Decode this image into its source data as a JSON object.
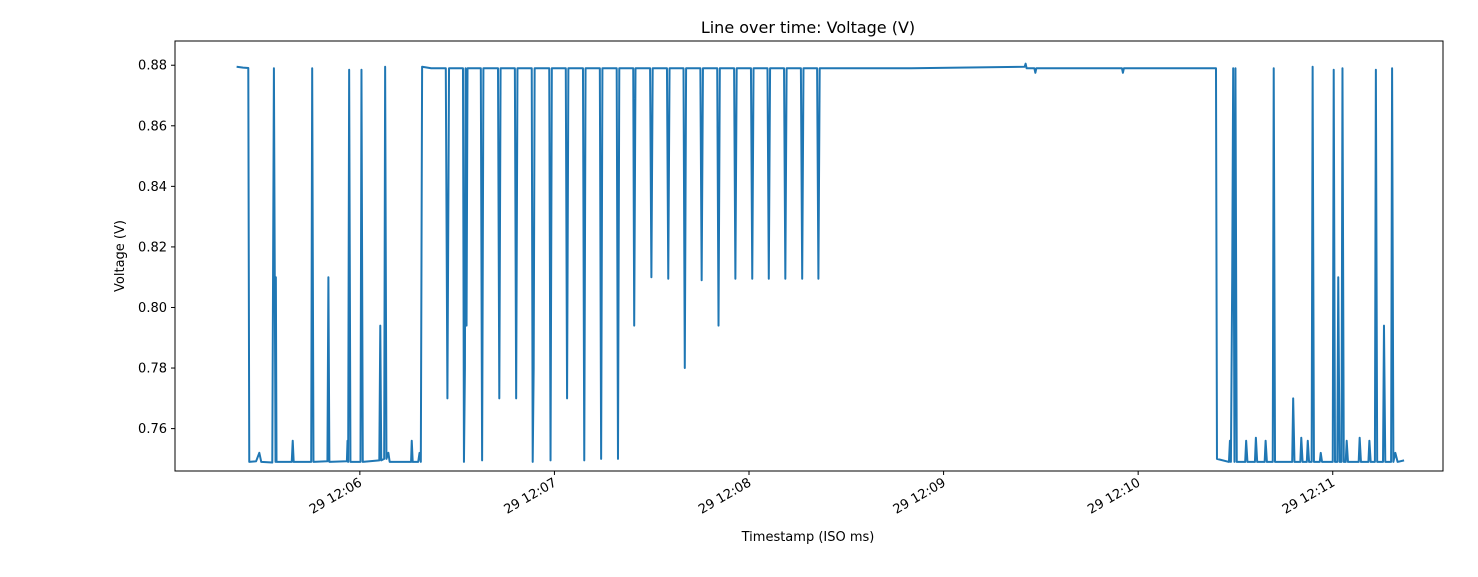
{
  "chart_data": {
    "type": "line",
    "title": "Line over time: Voltage (V)",
    "xlabel": "Timestamp (ISO ms)",
    "ylabel": "Voltage (V)",
    "grid": false,
    "legend": "none",
    "color": "#1f77b4",
    "xlim": [
      "12:05:03",
      "12:11:34"
    ],
    "ylim": [
      0.746,
      0.888
    ],
    "x_ticks": [
      {
        "t": "12:06:00",
        "label": "29 12:06"
      },
      {
        "t": "12:07:00",
        "label": "29 12:07"
      },
      {
        "t": "12:08:00",
        "label": "29 12:08"
      },
      {
        "t": "12:09:00",
        "label": "29 12:09"
      },
      {
        "t": "12:10:00",
        "label": "29 12:10"
      },
      {
        "t": "12:11:00",
        "label": "29 12:11"
      }
    ],
    "y_ticks": [
      0.76,
      0.78,
      0.8,
      0.82,
      0.84,
      0.86,
      0.88
    ],
    "series": [
      {
        "points": [
          [
            "12:05:22.0",
            0.8795
          ],
          [
            "12:05:24.0",
            0.8792
          ],
          [
            "12:05:25.6",
            0.8791
          ],
          [
            "12:05:25.9",
            0.749
          ],
          [
            "12:05:28.0",
            0.7492
          ],
          [
            "12:05:29.0",
            0.752
          ],
          [
            "12:05:29.6",
            0.749
          ],
          [
            "12:05:33.0",
            0.7488
          ],
          [
            "12:05:33.5",
            0.879
          ],
          [
            "12:05:34.0",
            0.749
          ],
          [
            "12:05:34.1",
            0.81
          ],
          [
            "12:05:34.3",
            0.749
          ],
          [
            "12:05:39.0",
            0.749
          ],
          [
            "12:05:39.3",
            0.756
          ],
          [
            "12:05:39.6",
            0.749
          ],
          [
            "12:05:45.0",
            0.749
          ],
          [
            "12:05:45.3",
            0.879
          ],
          [
            "12:05:45.7",
            0.749
          ],
          [
            "12:05:50.0",
            0.7492
          ],
          [
            "12:05:50.3",
            0.81
          ],
          [
            "12:05:50.6",
            0.749
          ],
          [
            "12:05:56.0",
            0.7492
          ],
          [
            "12:05:56.2",
            0.756
          ],
          [
            "12:05:56.4",
            0.749
          ],
          [
            "12:05:56.7",
            0.8785
          ],
          [
            "12:05:57.1",
            0.749
          ],
          [
            "12:06:00.2",
            0.749
          ],
          [
            "12:06:00.5",
            0.8785
          ],
          [
            "12:06:00.9",
            0.749
          ],
          [
            "12:06:06.0",
            0.7495
          ],
          [
            "12:06:06.3",
            0.794
          ],
          [
            "12:06:06.6",
            0.7495
          ],
          [
            "12:06:07.5",
            0.75
          ],
          [
            "12:06:07.8",
            0.8795
          ],
          [
            "12:06:08.2",
            0.75
          ],
          [
            "12:06:08.8",
            0.752
          ],
          [
            "12:06:09.2",
            0.749
          ],
          [
            "12:06:15.8",
            0.749
          ],
          [
            "12:06:16.0",
            0.756
          ],
          [
            "12:06:16.3",
            0.749
          ],
          [
            "12:06:18.0",
            0.749
          ],
          [
            "12:06:18.4",
            0.752
          ],
          [
            "12:06:18.8",
            0.749
          ],
          [
            "12:06:19.2",
            0.8795
          ],
          [
            "12:06:22.0",
            0.879
          ],
          [
            "12:06:26.5",
            0.879
          ],
          [
            "12:06:27.0",
            0.77
          ],
          [
            "12:06:27.5",
            0.879
          ],
          [
            "12:06:31.8",
            0.879
          ],
          [
            "12:06:32.1",
            0.749
          ],
          [
            "12:06:32.4",
            0.78
          ],
          [
            "12:06:32.6",
            0.879
          ],
          [
            "12:06:32.9",
            0.794
          ],
          [
            "12:06:33.2",
            0.879
          ],
          [
            "12:06:37.3",
            0.879
          ],
          [
            "12:06:37.7",
            0.7495
          ],
          [
            "12:06:38.1",
            0.879
          ],
          [
            "12:06:42.6",
            0.879
          ],
          [
            "12:06:43.0",
            0.77
          ],
          [
            "12:06:43.4",
            0.879
          ],
          [
            "12:06:47.8",
            0.879
          ],
          [
            "12:06:48.2",
            0.77
          ],
          [
            "12:06:48.6",
            0.879
          ],
          [
            "12:06:53.0",
            0.879
          ],
          [
            "12:06:53.3",
            0.749
          ],
          [
            "12:06:53.6",
            0.78
          ],
          [
            "12:06:53.9",
            0.879
          ],
          [
            "12:06:58.4",
            0.879
          ],
          [
            "12:06:58.8",
            0.7495
          ],
          [
            "12:06:59.2",
            0.879
          ],
          [
            "12:07:03.5",
            0.879
          ],
          [
            "12:07:03.9",
            0.77
          ],
          [
            "12:07:04.3",
            0.879
          ],
          [
            "12:07:08.8",
            0.879
          ],
          [
            "12:07:09.2",
            0.7495
          ],
          [
            "12:07:09.6",
            0.879
          ],
          [
            "12:07:14.0",
            0.879
          ],
          [
            "12:07:14.4",
            0.75
          ],
          [
            "12:07:14.8",
            0.879
          ],
          [
            "12:07:19.2",
            0.879
          ],
          [
            "12:07:19.6",
            0.75
          ],
          [
            "12:07:20.0",
            0.879
          ],
          [
            "12:07:24.3",
            0.879
          ],
          [
            "12:07:24.6",
            0.794
          ],
          [
            "12:07:25.0",
            0.879
          ],
          [
            "12:07:29.5",
            0.879
          ],
          [
            "12:07:29.9",
            0.81
          ],
          [
            "12:07:30.3",
            0.879
          ],
          [
            "12:07:34.7",
            0.879
          ],
          [
            "12:07:35.1",
            0.8095
          ],
          [
            "12:07:35.5",
            0.879
          ],
          [
            "12:07:39.8",
            0.879
          ],
          [
            "12:07:40.2",
            0.78
          ],
          [
            "12:07:40.6",
            0.879
          ],
          [
            "12:07:45.0",
            0.879
          ],
          [
            "12:07:45.4",
            0.809
          ],
          [
            "12:07:45.8",
            0.879
          ],
          [
            "12:07:50.2",
            0.879
          ],
          [
            "12:07:50.6",
            0.794
          ],
          [
            "12:07:51.0",
            0.879
          ],
          [
            "12:07:55.4",
            0.879
          ],
          [
            "12:07:55.8",
            0.8095
          ],
          [
            "12:07:56.2",
            0.879
          ],
          [
            "12:08:00.6",
            0.879
          ],
          [
            "12:08:01.0",
            0.8095
          ],
          [
            "12:08:01.4",
            0.879
          ],
          [
            "12:08:05.7",
            0.879
          ],
          [
            "12:08:06.1",
            0.8095
          ],
          [
            "12:08:06.5",
            0.879
          ],
          [
            "12:08:10.8",
            0.879
          ],
          [
            "12:08:11.2",
            0.8095
          ],
          [
            "12:08:11.6",
            0.879
          ],
          [
            "12:08:16.0",
            0.879
          ],
          [
            "12:08:16.4",
            0.8095
          ],
          [
            "12:08:16.8",
            0.879
          ],
          [
            "12:08:21.0",
            0.879
          ],
          [
            "12:08:21.4",
            0.8095
          ],
          [
            "12:08:21.8",
            0.879
          ],
          [
            "12:08:50.0",
            0.879
          ],
          [
            "12:09:25.0",
            0.8795
          ],
          [
            "12:09:25.3",
            0.8805
          ],
          [
            "12:09:25.6",
            0.879
          ],
          [
            "12:09:28.0",
            0.879
          ],
          [
            "12:09:28.3",
            0.8775
          ],
          [
            "12:09:28.6",
            0.879
          ],
          [
            "12:09:55.0",
            0.879
          ],
          [
            "12:09:55.3",
            0.8775
          ],
          [
            "12:09:55.6",
            0.879
          ],
          [
            "12:10:24.0",
            0.879
          ],
          [
            "12:10:24.3",
            0.75
          ],
          [
            "12:10:28.0",
            0.749
          ],
          [
            "12:10:28.3",
            0.756
          ],
          [
            "12:10:28.6",
            0.749
          ],
          [
            "12:10:29.0",
            0.81
          ],
          [
            "12:10:29.3",
            0.879
          ],
          [
            "12:10:29.7",
            0.749
          ],
          [
            "12:10:30.0",
            0.879
          ],
          [
            "12:10:30.4",
            0.749
          ],
          [
            "12:10:33.0",
            0.749
          ],
          [
            "12:10:33.3",
            0.756
          ],
          [
            "12:10:33.7",
            0.749
          ],
          [
            "12:10:36.0",
            0.749
          ],
          [
            "12:10:36.3",
            0.757
          ],
          [
            "12:10:36.7",
            0.749
          ],
          [
            "12:10:39.0",
            0.749
          ],
          [
            "12:10:39.3",
            0.756
          ],
          [
            "12:10:39.7",
            0.749
          ],
          [
            "12:10:41.5",
            0.749
          ],
          [
            "12:10:41.8",
            0.879
          ],
          [
            "12:10:42.2",
            0.749
          ],
          [
            "12:10:47.5",
            0.749
          ],
          [
            "12:10:47.8",
            0.77
          ],
          [
            "12:10:48.2",
            0.749
          ],
          [
            "12:10:50.0",
            0.749
          ],
          [
            "12:10:50.3",
            0.757
          ],
          [
            "12:10:50.7",
            0.749
          ],
          [
            "12:10:52.0",
            0.749
          ],
          [
            "12:10:52.3",
            0.756
          ],
          [
            "12:10:52.7",
            0.749
          ],
          [
            "12:10:53.5",
            0.749
          ],
          [
            "12:10:53.8",
            0.8795
          ],
          [
            "12:10:54.2",
            0.749
          ],
          [
            "12:10:56.0",
            0.749
          ],
          [
            "12:10:56.3",
            0.752
          ],
          [
            "12:10:56.7",
            0.749
          ],
          [
            "12:11:00.0",
            0.749
          ],
          [
            "12:11:00.3",
            0.8785
          ],
          [
            "12:11:00.7",
            0.749
          ],
          [
            "12:11:01.4",
            0.749
          ],
          [
            "12:11:01.7",
            0.81
          ],
          [
            "12:11:02.1",
            0.749
          ],
          [
            "12:11:02.7",
            0.749
          ],
          [
            "12:11:03.0",
            0.879
          ],
          [
            "12:11:03.4",
            0.749
          ],
          [
            "12:11:04.0",
            0.749
          ],
          [
            "12:11:04.3",
            0.756
          ],
          [
            "12:11:04.7",
            0.749
          ],
          [
            "12:11:08.0",
            0.749
          ],
          [
            "12:11:08.3",
            0.757
          ],
          [
            "12:11:08.7",
            0.749
          ],
          [
            "12:11:11.0",
            0.749
          ],
          [
            "12:11:11.3",
            0.756
          ],
          [
            "12:11:11.7",
            0.749
          ],
          [
            "12:11:13.0",
            0.749
          ],
          [
            "12:11:13.3",
            0.8785
          ],
          [
            "12:11:13.7",
            0.749
          ],
          [
            "12:11:15.5",
            0.749
          ],
          [
            "12:11:15.8",
            0.794
          ],
          [
            "12:11:16.2",
            0.749
          ],
          [
            "12:11:18.0",
            0.749
          ],
          [
            "12:11:18.3",
            0.879
          ],
          [
            "12:11:18.7",
            0.749
          ],
          [
            "12:11:19.3",
            0.752
          ],
          [
            "12:11:20.0",
            0.749
          ],
          [
            "12:11:22.0",
            0.7495
          ]
        ]
      }
    ]
  }
}
